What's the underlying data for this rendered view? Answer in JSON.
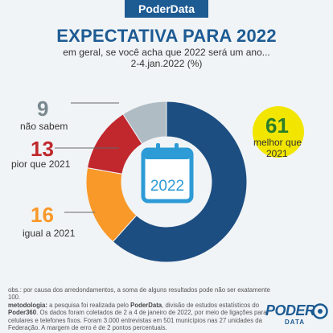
{
  "brand": {
    "tab": "PoderData",
    "logo_word": "PODER",
    "logo_sub": "DATA"
  },
  "header": {
    "title": "EXPECTATIVA PARA 2022",
    "subtitle_line1": "em geral, se você acha que 2022 será um ano...",
    "subtitle_line2": "2-4.jan.2022 (%)"
  },
  "calendar": {
    "text": "2022"
  },
  "chart_data": {
    "type": "pie",
    "title": "EXPECTATIVA PARA 2022",
    "slices": [
      {
        "label": "melhor que 2021",
        "value": 61,
        "color": "#1d4e82"
      },
      {
        "label": "igual a 2021",
        "value": 16,
        "color": "#f9992a"
      },
      {
        "label": "pior que 2021",
        "value": 13,
        "color": "#c0282d"
      },
      {
        "label": "não sabem",
        "value": 9,
        "color": "#b0bcc4"
      }
    ]
  },
  "labels": {
    "melhor": {
      "value": "61",
      "text1": "melhor que",
      "text2": "2021",
      "color": "#2a7d2a",
      "highlight": "#f2e600"
    },
    "igual": {
      "value": "16",
      "text": "igual a 2021",
      "color": "#f9992a"
    },
    "pior": {
      "value": "13",
      "text": "pior que 2021",
      "color": "#c0282d"
    },
    "nao_sabem": {
      "value": "9",
      "text": "não sabem",
      "color": "#7a8990"
    }
  },
  "footnote": {
    "obs": "obs.: por causa dos arredondamentos, a soma de alguns resultados pode não ser exatamente 100.",
    "metodologia_label": "metodologia:",
    "metodologia_text1": " a pesquisa foi realizada pelo ",
    "poderdata": "PoderData",
    "metodologia_text2": ", divisão de estudos estatísticos do ",
    "poder360": "Poder360",
    "metodologia_text3": ". Os dados foram coletados de 2 a 4 de janeiro de 2022, por meio de ligações para celulares e telefones fixos. Foram 3.000 entrevistas em 501 municípios nas 27 unidades da Federação. A margem de erro é de 2 pontos percentuais."
  }
}
